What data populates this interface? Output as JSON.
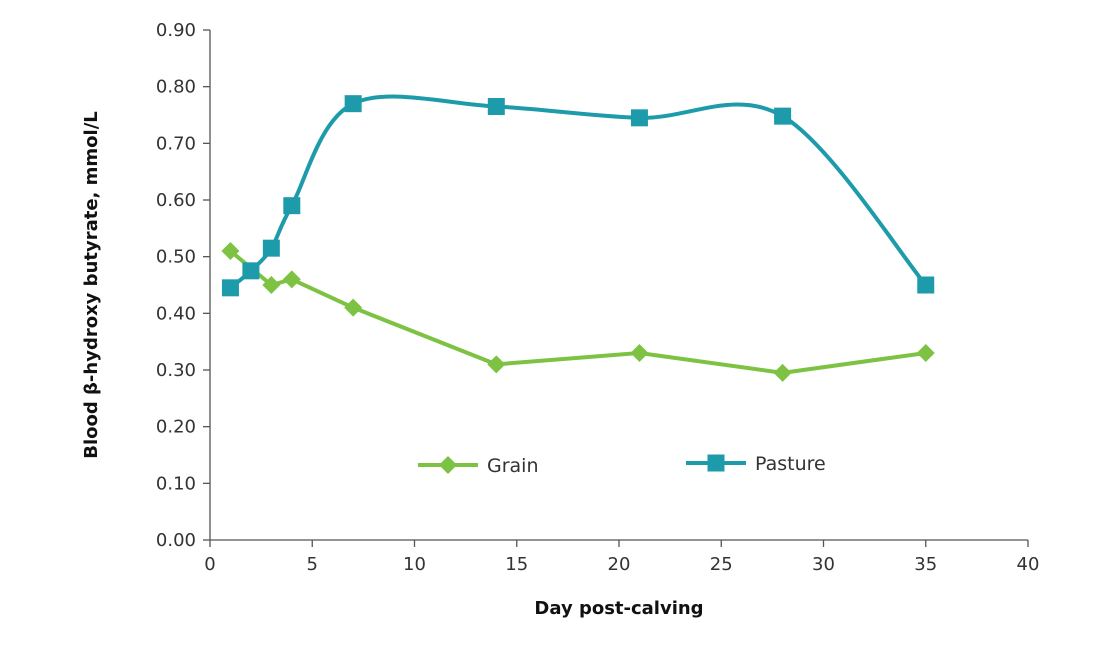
{
  "chart_data": {
    "type": "line",
    "title": "",
    "xlabel": "Day post-calving",
    "ylabel": "Blood β-hydroxy butyrate, mmol/L",
    "xlim": [
      0,
      40
    ],
    "ylim": [
      0,
      0.9
    ],
    "x_ticks": [
      "0",
      "5",
      "10",
      "15",
      "20",
      "25",
      "30",
      "35",
      "40"
    ],
    "y_ticks": [
      "0.00",
      "0.10",
      "0.20",
      "0.30",
      "0.40",
      "0.50",
      "0.60",
      "0.70",
      "0.80",
      "0.90"
    ],
    "grid": false,
    "legend_position": "center",
    "series": [
      {
        "name": "Grain",
        "color": "#7dc242",
        "marker": "diamond",
        "smooth": false,
        "x": [
          1,
          3,
          4,
          7,
          14,
          21,
          28,
          35
        ],
        "y": [
          0.51,
          0.45,
          0.46,
          0.41,
          0.31,
          0.33,
          0.295,
          0.33
        ]
      },
      {
        "name": "Pasture",
        "color": "#1e9bab",
        "marker": "square",
        "smooth": true,
        "x": [
          1,
          2,
          3,
          4,
          7,
          14,
          21,
          28,
          35
        ],
        "y": [
          0.445,
          0.475,
          0.515,
          0.59,
          0.77,
          0.765,
          0.745,
          0.748,
          0.45
        ]
      }
    ]
  }
}
